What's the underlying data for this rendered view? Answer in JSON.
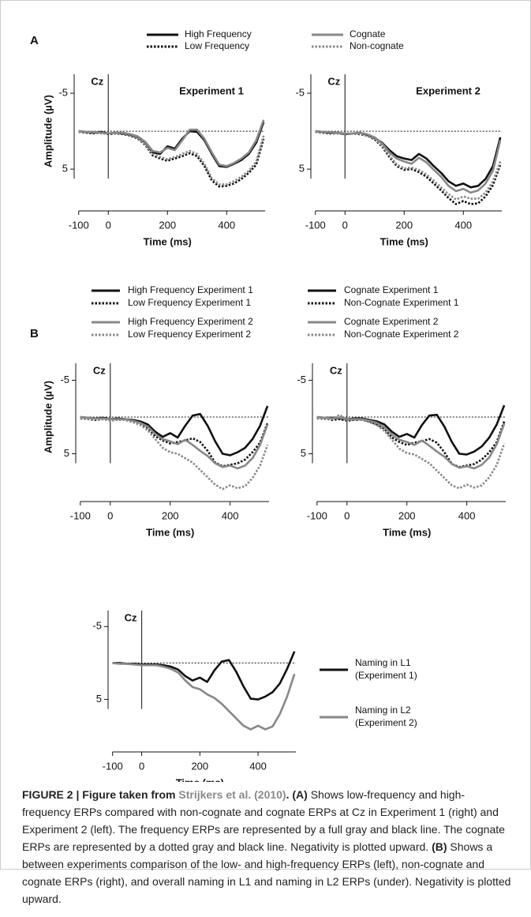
{
  "panel_labels": [
    "A",
    "B"
  ],
  "chart_data": [
    {
      "type": "line",
      "title": "Experiment 1",
      "label": "Cz",
      "ylabel": "Amplitude (µV)",
      "xlabel": "Time (ms)",
      "x": [
        -100,
        -75,
        -50,
        -25,
        0,
        25,
        50,
        75,
        100,
        125,
        150,
        175,
        200,
        225,
        250,
        275,
        300,
        325,
        350,
        375,
        400,
        425,
        450,
        475,
        500,
        525
      ],
      "xlim": [
        -110,
        530
      ],
      "xticks": [
        -100,
        0,
        200,
        400
      ],
      "ylim": [
        -7.5,
        10.5
      ],
      "yticks": [
        -5,
        5
      ],
      "invert_y": true,
      "series": [
        {
          "name": "High Frequency",
          "color": "#111111",
          "dash": "solid",
          "values": [
            0,
            0.1,
            0.2,
            0.1,
            0.3,
            0.2,
            0.3,
            0.5,
            0.8,
            1.5,
            2.8,
            3.0,
            2.0,
            2.3,
            1.0,
            0.0,
            0.1,
            1.2,
            3.0,
            4.6,
            4.7,
            4.3,
            3.8,
            3.0,
            1.5,
            -1.2
          ]
        },
        {
          "name": "Low Frequency",
          "color": "#111111",
          "dash": "dotted",
          "values": [
            0.1,
            0.2,
            0.3,
            0.2,
            0.4,
            0.3,
            0.4,
            0.6,
            1.0,
            1.8,
            3.2,
            3.6,
            3.9,
            3.6,
            3.3,
            2.9,
            3.3,
            4.6,
            6.5,
            7.3,
            7.2,
            6.9,
            6.3,
            5.5,
            4.4,
            1.0
          ]
        },
        {
          "name": "Cognate",
          "color": "#888888",
          "dash": "solid",
          "values": [
            0,
            0.1,
            0.1,
            0.2,
            0.3,
            0.2,
            0.2,
            0.4,
            0.7,
            1.4,
            2.6,
            2.8,
            2.2,
            2.5,
            1.2,
            -0.2,
            -0.2,
            1.0,
            2.8,
            4.4,
            4.6,
            4.2,
            3.6,
            2.8,
            1.2,
            -1.5
          ]
        },
        {
          "name": "Non-cognate",
          "color": "#888888",
          "dash": "dotted",
          "values": [
            0.1,
            0.1,
            0.2,
            0.3,
            0.3,
            0.3,
            0.3,
            0.5,
            0.9,
            1.7,
            3.0,
            3.4,
            3.7,
            3.4,
            3.0,
            2.6,
            3.0,
            4.3,
            6.2,
            7.0,
            7.0,
            6.6,
            6.0,
            5.2,
            4.0,
            0.6
          ]
        }
      ]
    },
    {
      "type": "line",
      "title": "Experiment 2",
      "label": "Cz",
      "xlabel": "Time (ms)",
      "x": [
        -100,
        -75,
        -50,
        -25,
        0,
        25,
        50,
        75,
        100,
        125,
        150,
        175,
        200,
        225,
        250,
        275,
        300,
        325,
        350,
        375,
        400,
        425,
        450,
        475,
        500,
        525
      ],
      "xlim": [
        -110,
        530
      ],
      "xticks": [
        -100,
        0,
        200,
        400
      ],
      "ylim": [
        -7.5,
        10.5
      ],
      "yticks": [
        -5,
        5
      ],
      "invert_y": true,
      "series": [
        {
          "color": "#111111",
          "dash": "solid",
          "values": [
            0,
            0.1,
            0.2,
            0.2,
            0.4,
            0.3,
            0.2,
            0.5,
            0.9,
            1.5,
            2.5,
            3.3,
            3.6,
            3.8,
            3.0,
            3.6,
            4.6,
            5.5,
            6.6,
            7.2,
            6.9,
            7.4,
            7.2,
            6.3,
            4.6,
            0.8
          ]
        },
        {
          "color": "#111111",
          "dash": "dotted",
          "values": [
            0.1,
            0.2,
            0.3,
            0.3,
            0.4,
            0.3,
            0.4,
            0.6,
            1.1,
            2.0,
            3.4,
            4.6,
            5.1,
            5.0,
            5.4,
            6.0,
            6.9,
            7.8,
            8.8,
            9.6,
            9.2,
            9.6,
            9.5,
            8.6,
            7.1,
            4.4
          ]
        },
        {
          "color": "#888888",
          "dash": "solid",
          "values": [
            0,
            0.1,
            0.1,
            0.2,
            0.3,
            0.3,
            0.2,
            0.4,
            0.8,
            1.6,
            2.8,
            3.6,
            4.0,
            4.3,
            3.5,
            4.1,
            5.1,
            6.0,
            7.2,
            7.9,
            7.6,
            8.1,
            7.8,
            6.9,
            5.2,
            1.2
          ]
        },
        {
          "color": "#888888",
          "dash": "dotted",
          "values": [
            0.1,
            0.1,
            0.2,
            0.3,
            0.4,
            0.3,
            0.3,
            0.6,
            1.0,
            1.9,
            3.2,
            4.4,
            4.9,
            4.8,
            5.1,
            5.7,
            6.5,
            7.4,
            8.3,
            9.0,
            8.6,
            8.9,
            8.9,
            8.1,
            6.6,
            4.0
          ]
        }
      ]
    },
    {
      "type": "line",
      "label": "Cz",
      "ylabel": "Amplitude (µV)",
      "xlabel": "Time (ms)",
      "x": [
        -100,
        -75,
        -50,
        -25,
        0,
        25,
        50,
        75,
        100,
        125,
        150,
        175,
        200,
        225,
        250,
        275,
        300,
        325,
        350,
        375,
        400,
        425,
        450,
        475,
        500,
        525
      ],
      "xlim": [
        -110,
        530
      ],
      "xticks": [
        -100,
        0,
        200,
        400
      ],
      "ylim": [
        -7.3,
        11.5
      ],
      "yticks": [
        -5,
        5
      ],
      "invert_y": true,
      "series": [
        {
          "name": "High Frequency Experiment 1",
          "color": "#111111",
          "dash": "solid",
          "values": [
            0,
            0.1,
            0.2,
            0.1,
            0.3,
            0.2,
            0.3,
            0.4,
            0.6,
            1.0,
            2.0,
            2.7,
            2.2,
            2.8,
            1.2,
            -0.2,
            -0.4,
            1.2,
            3.3,
            5.0,
            5.2,
            4.8,
            4.2,
            3.0,
            1.2,
            -1.5
          ]
        },
        {
          "name": "Low Frequency Experiment 1",
          "color": "#111111",
          "dash": "dotted",
          "values": [
            0.2,
            0.3,
            0.4,
            0.3,
            0.4,
            0.3,
            0.4,
            0.6,
            0.9,
            1.5,
            2.6,
            3.2,
            3.6,
            3.4,
            3.2,
            2.9,
            3.4,
            4.6,
            6.2,
            6.7,
            6.5,
            6.3,
            5.8,
            4.8,
            3.5,
            0.8
          ]
        },
        {
          "name": "High Frequency Experiment 2",
          "color": "#888888",
          "dash": "solid",
          "values": [
            0,
            0.1,
            0.2,
            0.2,
            0.3,
            0.3,
            0.3,
            0.5,
            0.8,
            1.3,
            2.3,
            3.0,
            3.3,
            3.7,
            3.1,
            3.8,
            4.6,
            5.3,
            6.3,
            6.8,
            6.6,
            7.0,
            6.6,
            5.6,
            3.8,
            1.0
          ]
        },
        {
          "name": "Low Frequency Experiment 2",
          "color": "#888888",
          "dash": "dotted",
          "values": [
            0.2,
            0.3,
            0.3,
            0.3,
            0.5,
            0.4,
            0.4,
            0.7,
            1.1,
            1.8,
            3.0,
            4.2,
            4.8,
            5.0,
            5.6,
            6.2,
            7.2,
            8.2,
            9.2,
            9.8,
            9.3,
            9.7,
            9.4,
            8.3,
            6.6,
            3.8
          ]
        }
      ]
    },
    {
      "type": "line",
      "label": "Cz",
      "xlabel": "Time (ms)",
      "x": [
        -100,
        -75,
        -50,
        -25,
        0,
        25,
        50,
        75,
        100,
        125,
        150,
        175,
        200,
        225,
        250,
        275,
        300,
        325,
        350,
        375,
        400,
        425,
        450,
        475,
        500,
        525
      ],
      "xlim": [
        -110,
        530
      ],
      "xticks": [
        -100,
        0,
        200,
        400
      ],
      "ylim": [
        -7.3,
        11.5
      ],
      "yticks": [
        -5,
        5
      ],
      "invert_y": true,
      "series": [
        {
          "name": "Cognate Experiment 1",
          "color": "#111111",
          "dash": "solid",
          "values": [
            0,
            0.1,
            0.1,
            0.2,
            0.3,
            0.2,
            0.2,
            0.4,
            0.6,
            1.0,
            2.0,
            2.7,
            2.3,
            2.8,
            1.1,
            -0.2,
            -0.3,
            1.3,
            3.4,
            5.0,
            5.1,
            4.7,
            4.0,
            2.8,
            1.0,
            -1.6
          ]
        },
        {
          "name": "Non-Cognate Experiment 1",
          "color": "#111111",
          "dash": "dotted",
          "values": [
            0.2,
            0.2,
            0.4,
            0.3,
            0.5,
            0.4,
            0.3,
            0.6,
            1.0,
            1.6,
            2.8,
            3.4,
            3.8,
            3.5,
            3.3,
            3.0,
            3.5,
            4.8,
            6.4,
            6.8,
            6.6,
            6.4,
            5.8,
            4.8,
            3.4,
            0.6
          ]
        },
        {
          "name": "Cognate Experiment 2",
          "color": "#888888",
          "dash": "solid",
          "values": [
            0,
            0.1,
            0.2,
            0.1,
            0.3,
            0.3,
            0.3,
            0.5,
            0.8,
            1.4,
            2.4,
            3.1,
            3.4,
            3.8,
            3.2,
            3.9,
            4.7,
            5.4,
            6.4,
            6.9,
            6.7,
            7.0,
            6.5,
            5.5,
            3.7,
            0.9
          ]
        },
        {
          "name": "Non-Cognate Experiment 2",
          "color": "#888888",
          "dash": "dotted",
          "values": [
            0.2,
            0.3,
            0.3,
            -0.3,
            0.4,
            0.4,
            0.4,
            0.7,
            1.1,
            1.9,
            3.1,
            4.3,
            4.9,
            5.1,
            5.7,
            6.3,
            7.3,
            8.3,
            9.3,
            9.7,
            9.2,
            9.6,
            9.3,
            8.2,
            6.5,
            3.6
          ]
        }
      ]
    },
    {
      "type": "line",
      "label": "Cz",
      "xlabel": "Time (ms)",
      "x": [
        -100,
        -75,
        -50,
        -25,
        0,
        25,
        50,
        75,
        100,
        125,
        150,
        175,
        200,
        225,
        250,
        275,
        300,
        325,
        350,
        375,
        400,
        425,
        450,
        475,
        500,
        525
      ],
      "xlim": [
        -110,
        530
      ],
      "xticks": [
        -100,
        0,
        200,
        400
      ],
      "ylim": [
        -7.2,
        12.2
      ],
      "yticks": [
        -5,
        5
      ],
      "invert_y": true,
      "series": [
        {
          "name": [
            "Naming in L1",
            "(Experiment 1)"
          ],
          "color": "#111111",
          "dash": "solid",
          "values": [
            0,
            0,
            0.1,
            0.1,
            0.2,
            0.2,
            0.2,
            0.3,
            0.5,
            0.9,
            1.8,
            2.4,
            2.0,
            2.6,
            1.0,
            -0.2,
            -0.4,
            1.2,
            3.2,
            4.9,
            5.0,
            4.6,
            4.0,
            2.8,
            0.8,
            -1.6
          ]
        },
        {
          "name": [
            "Naming in L2",
            "(Experiment 2)"
          ],
          "color": "#888888",
          "dash": "solid",
          "values": [
            0,
            0.1,
            0.1,
            0.2,
            0.3,
            0.3,
            0.3,
            0.5,
            0.8,
            1.3,
            2.4,
            3.3,
            3.6,
            4.3,
            4.8,
            5.6,
            6.6,
            7.6,
            8.6,
            9.1,
            8.6,
            9.1,
            8.7,
            7.0,
            4.6,
            1.5
          ]
        }
      ]
    }
  ],
  "caption": [
    {
      "text": "FIGURE 2 | Figure taken from ",
      "style": "bold"
    },
    {
      "text": "Strijkers et al. (2010)",
      "style": "link"
    },
    {
      "text": ". ",
      "style": "bold"
    },
    {
      "text": "(A)",
      "style": "bold"
    },
    {
      "text": " Shows low-frequency and high-frequency ERPs compared with non-cognate and cognate ERPs at Cz in Experiment 1 (right) and Experiment 2 (left). The frequency ERPs are represented by a full gray and black line. The cognate ERPs are represented by a dotted gray and black line. Negativity is plotted upward. ",
      "style": "normal"
    },
    {
      "text": "(B)",
      "style": "bold"
    },
    {
      "text": " Shows a between experiments comparison of the low- and high-frequency ERPs (left), non-cognate and cognate ERPs (right), and overall naming in L1 and naming in L2 ERPs (under). Negativity is plotted upward.",
      "style": "normal"
    }
  ]
}
